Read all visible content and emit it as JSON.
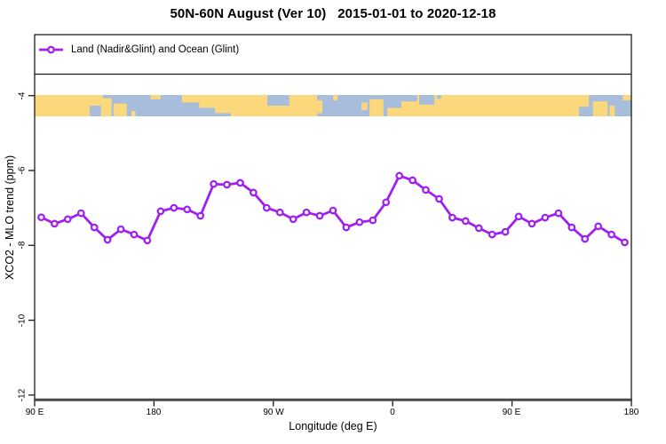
{
  "header": {
    "title": "50N-60N August (Ver 10)   2015-01-01 to 2020-12-18"
  },
  "legend": {
    "label": "Land (Nadir&Glint) and Ocean (Glint)"
  },
  "colors": {
    "series_purple": "#A020F0",
    "marker_fill": "#ffffff",
    "land_yellow": "#FBD87C",
    "ocean_blue": "#A8BCDB",
    "plot_border": "#1a1a1a",
    "axis_line_gray": "#4a4a4a",
    "background": "#ffffff"
  },
  "chart_data": {
    "type": "line",
    "title": "50N-60N August (Ver 10)   2015-01-01 to 2020-12-18",
    "xlabel": "Longitude (deg E)",
    "ylabel": "XCO2 - MLO trend (ppm)",
    "x_axis_span_deg": [
      90,
      540
    ],
    "ylim": [
      -12.3,
      -2.35
    ],
    "grid": "off",
    "legend_position": "top-left full-width box",
    "x_ticks": [
      {
        "deg": 90,
        "label": "90 E"
      },
      {
        "deg": 180,
        "label": "180"
      },
      {
        "deg": 270,
        "label": "90 W"
      },
      {
        "deg": 360,
        "label": "0"
      },
      {
        "deg": 450,
        "label": "90 E"
      },
      {
        "deg": 540,
        "label": "180"
      }
    ],
    "y_ticks": [
      {
        "value": -4,
        "label": "-4"
      },
      {
        "value": -6,
        "label": "-6"
      },
      {
        "value": -8,
        "label": "-8"
      },
      {
        "value": -10,
        "label": "-10"
      },
      {
        "value": -12,
        "label": "-12"
      }
    ],
    "series": [
      {
        "name": "Land (Nadir&Glint) and Ocean (Glint)",
        "color": "#A020F0",
        "marker": "open-circle",
        "x_deg": [
          95,
          105,
          115,
          125,
          135,
          145,
          155,
          165,
          175,
          185,
          195,
          205,
          215,
          225,
          235,
          245,
          255,
          265,
          275,
          285,
          295,
          305,
          315,
          325,
          335,
          345,
          355,
          365,
          375,
          385,
          395,
          405,
          415,
          425,
          435,
          445,
          455,
          465,
          475,
          485,
          495,
          505,
          515,
          525,
          535
        ],
        "values": [
          -7.25,
          -7.42,
          -7.3,
          -7.14,
          -7.52,
          -7.85,
          -7.57,
          -7.71,
          -7.87,
          -7.09,
          -7.0,
          -7.04,
          -7.21,
          -6.36,
          -6.38,
          -6.33,
          -6.59,
          -7.0,
          -7.12,
          -7.3,
          -7.12,
          -7.21,
          -7.07,
          -7.52,
          -7.38,
          -7.33,
          -6.85,
          -6.14,
          -6.26,
          -6.52,
          -6.76,
          -7.26,
          -7.35,
          -7.54,
          -7.71,
          -7.64,
          -7.23,
          -7.42,
          -7.26,
          -7.14,
          -7.52,
          -7.83,
          -7.49,
          -7.71,
          -7.92
        ]
      }
    ],
    "map_band": {
      "description": "land/ocean strip for 50N-60N plotted at trend value -4",
      "value_top": -4,
      "land_color": "#FBD87C",
      "ocean_color": "#A8BCDB",
      "land_segments": [
        [
          90,
          131.5,
          0,
          1
        ],
        [
          131.5,
          141.5,
          0,
          0.5
        ],
        [
          140,
          148,
          0.15,
          1
        ],
        [
          149.5,
          159.5,
          0.4,
          1
        ],
        [
          163,
          166,
          0.75,
          1
        ],
        [
          177.5,
          185,
          0,
          0.2
        ],
        [
          201,
          214,
          0,
          0.35
        ],
        [
          214,
          226,
          0,
          0.6
        ],
        [
          226,
          238,
          0,
          0.85
        ],
        [
          238,
          265.5,
          0,
          1
        ],
        [
          265.5,
          282,
          0.5,
          1
        ],
        [
          282,
          303,
          0,
          1
        ],
        [
          303,
          307,
          0.25,
          0.85
        ],
        [
          315,
          318.5,
          0,
          0.25
        ],
        [
          336.5,
          341,
          0.35,
          0.7
        ],
        [
          342.5,
          353,
          0.2,
          1
        ],
        [
          356,
          366.5,
          0.6,
          1
        ],
        [
          366.5,
          378.5,
          0.3,
          1
        ],
        [
          378.5,
          500.5,
          0,
          1
        ],
        [
          500.5,
          508,
          0,
          0.55
        ],
        [
          511,
          522,
          0.3,
          1
        ],
        [
          523.5,
          527.5,
          0.5,
          1
        ],
        [
          533.5,
          540,
          0,
          0.25
        ]
      ],
      "ocean_overlays": [
        [
          380,
          391.5,
          0,
          0.45
        ],
        [
          393.5,
          396.5,
          0,
          0.18
        ]
      ]
    }
  }
}
